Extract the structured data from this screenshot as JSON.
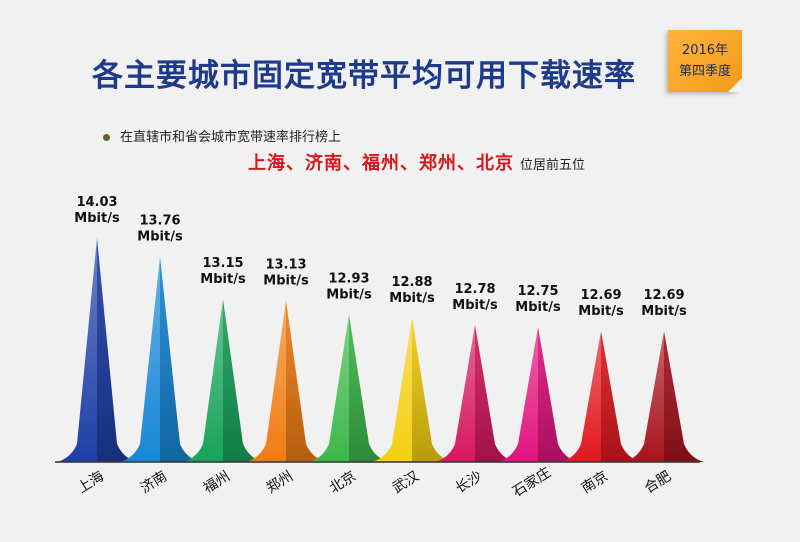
{
  "page": {
    "title": "各主要城市固定宽带平均可用下载速率",
    "badge_line1": "2016年",
    "badge_line2": "第四季度",
    "subtitle": "在直辖市和省会城市宽带速率排行榜上",
    "highlight_cities": "上海、济南、福州、郑州、北京",
    "highlight_suffix": "位居前五位"
  },
  "chart_data": {
    "type": "bar",
    "unit": "Mbit/s",
    "categories": [
      "上海",
      "济南",
      "福州",
      "郑州",
      "北京",
      "武汉",
      "长沙",
      "石家庄",
      "南京",
      "合肥"
    ],
    "values": [
      14.03,
      13.76,
      13.15,
      13.13,
      12.93,
      12.88,
      12.78,
      12.75,
      12.69,
      12.69
    ],
    "value_labels": [
      "14.03",
      "13.76",
      "13.15",
      "13.13",
      "12.93",
      "12.88",
      "12.78",
      "12.75",
      "12.69",
      "12.69"
    ],
    "colors": [
      "#1d3fa6",
      "#1687d6",
      "#17a35a",
      "#f07c12",
      "#3cb84a",
      "#f4cf10",
      "#d6185e",
      "#e2137d",
      "#e0181e",
      "#a8141d"
    ]
  }
}
